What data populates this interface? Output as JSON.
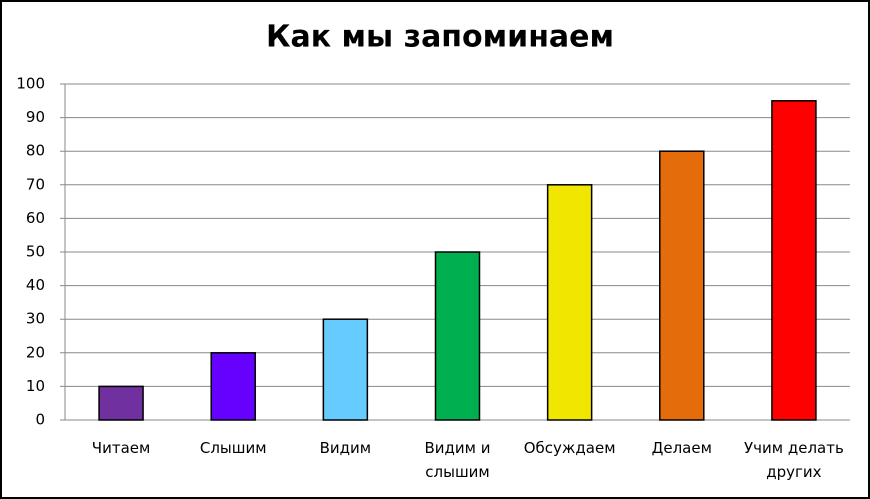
{
  "chart_data": {
    "type": "bar",
    "title": "Как мы запоминаем",
    "categories": [
      "Читаем",
      "Слышим",
      "Видим",
      "Видим и слышим",
      "Обсуждаем",
      "Делаем",
      "Учим делать других"
    ],
    "values": [
      10,
      20,
      30,
      50,
      70,
      80,
      95
    ],
    "colors": [
      "#7030a0",
      "#6600ff",
      "#66ccff",
      "#00b050",
      "#f0e600",
      "#e46c0a",
      "#ff0000"
    ],
    "ylim": [
      0,
      100
    ],
    "yticks": [
      0,
      10,
      20,
      30,
      40,
      50,
      60,
      70,
      80,
      90,
      100
    ],
    "grid": true
  }
}
